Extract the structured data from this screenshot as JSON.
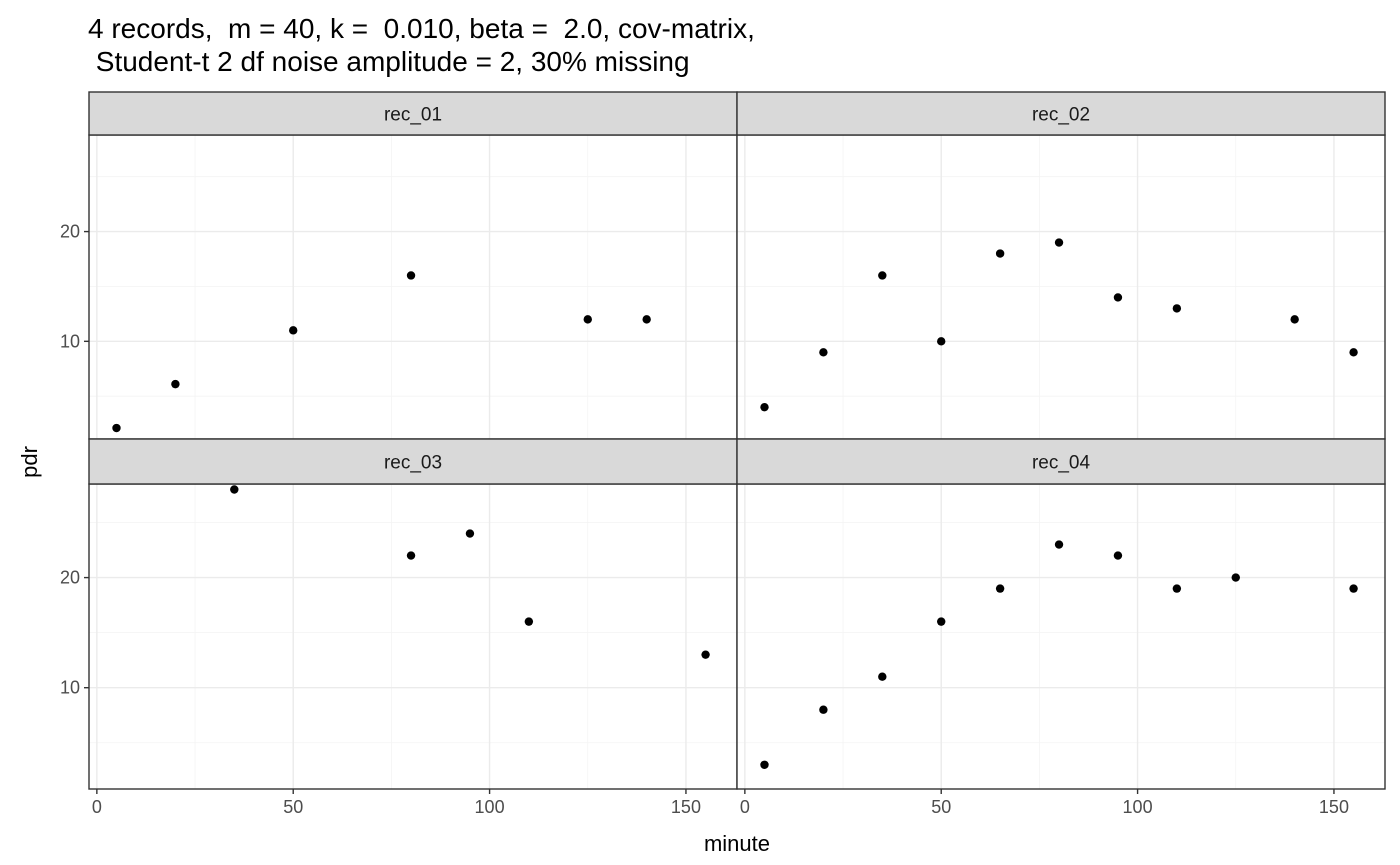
{
  "chart_data": {
    "type": "scatter",
    "title_line1": "4 records,  m = 40, k =  0.010, beta =  2.0, cov-matrix,",
    "title_line2": " Student-t 2 df noise amplitude = 2, 30% missing",
    "xlabel": "minute",
    "ylabel": "pdr",
    "xlim": [
      -2,
      163
    ],
    "x_ticks": [
      0,
      50,
      100,
      150
    ],
    "x_tick_labels": [
      "0",
      "50",
      "100",
      "150"
    ],
    "grid": true,
    "facets": [
      {
        "label": "rec_01",
        "ylim": [
          1.1,
          28.8
        ],
        "y_ticks": [
          10,
          20
        ],
        "y_tick_labels": [
          "10",
          "20"
        ],
        "points": [
          {
            "x": 5,
            "y": 2.1
          },
          {
            "x": 20,
            "y": 6.1
          },
          {
            "x": 50,
            "y": 11
          },
          {
            "x": 80,
            "y": 16
          },
          {
            "x": 125,
            "y": 12
          },
          {
            "x": 140,
            "y": 12
          }
        ]
      },
      {
        "label": "rec_02",
        "ylim": [
          1.1,
          28.8
        ],
        "y_ticks": [
          10,
          20
        ],
        "y_tick_labels": [
          "10",
          "20"
        ],
        "points": [
          {
            "x": 5,
            "y": 4
          },
          {
            "x": 20,
            "y": 9
          },
          {
            "x": 35,
            "y": 16
          },
          {
            "x": 50,
            "y": 10
          },
          {
            "x": 65,
            "y": 18
          },
          {
            "x": 80,
            "y": 19
          },
          {
            "x": 95,
            "y": 14
          },
          {
            "x": 110,
            "y": 13
          },
          {
            "x": 140,
            "y": 12
          },
          {
            "x": 155,
            "y": 9
          }
        ]
      },
      {
        "label": "rec_03",
        "ylim": [
          0.8,
          28.5
        ],
        "y_ticks": [
          10,
          20
        ],
        "y_tick_labels": [
          "10",
          "20"
        ],
        "points": [
          {
            "x": 35,
            "y": 28
          },
          {
            "x": 80,
            "y": 22
          },
          {
            "x": 95,
            "y": 24
          },
          {
            "x": 110,
            "y": 16
          },
          {
            "x": 155,
            "y": 13
          }
        ]
      },
      {
        "label": "rec_04",
        "ylim": [
          0.8,
          28.5
        ],
        "y_ticks": [
          10,
          20
        ],
        "y_tick_labels": [
          "10",
          "20"
        ],
        "points": [
          {
            "x": 5,
            "y": 3
          },
          {
            "x": 20,
            "y": 8
          },
          {
            "x": 35,
            "y": 11
          },
          {
            "x": 50,
            "y": 16
          },
          {
            "x": 65,
            "y": 19
          },
          {
            "x": 80,
            "y": 23
          },
          {
            "x": 95,
            "y": 22
          },
          {
            "x": 110,
            "y": 19
          },
          {
            "x": 125,
            "y": 20
          },
          {
            "x": 155,
            "y": 19
          }
        ]
      }
    ]
  }
}
